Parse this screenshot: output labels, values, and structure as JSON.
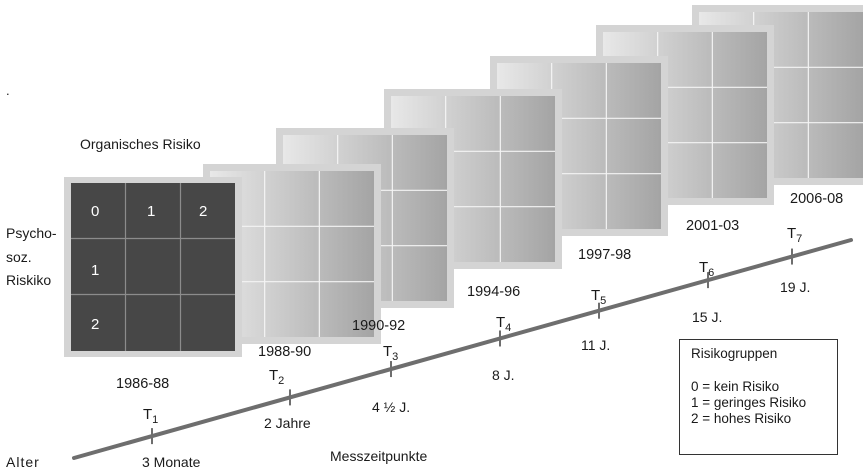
{
  "organic_risk_label": "Organisches Risiko",
  "psychosocial_risk_label": [
    "Psycho-",
    "soz.",
    "Riskiko"
  ],
  "axis_label": "Alter",
  "measurement_label": "Messzeitpunkte",
  "dot": ".",
  "grid": {
    "column_numbers": [
      "0",
      "1",
      "2"
    ],
    "row_numbers": [
      "1",
      "2"
    ]
  },
  "periods": [
    "1986-88",
    "1988-90",
    "1990-92",
    "1994-96",
    "1997-98",
    "2001-03",
    "2006-08"
  ],
  "timepoints": [
    {
      "t": "T",
      "sub": "1",
      "age": "3 Monate"
    },
    {
      "t": "T",
      "sub": "2",
      "age": "2 Jahre"
    },
    {
      "t": "T",
      "sub": "3",
      "age": "4 ½ J."
    },
    {
      "t": "T",
      "sub": "4",
      "age": "8 J."
    },
    {
      "t": "T",
      "sub": "5",
      "age": "11 J."
    },
    {
      "t": "T",
      "sub": "6",
      "age": "15 J."
    },
    {
      "t": "T",
      "sub": "7",
      "age": "19 J."
    }
  ],
  "legend": {
    "title": "Risikogruppen",
    "items": [
      "0 = kein Risiko",
      "1 = geringes Risiko",
      "2 = hohes Risiko"
    ]
  },
  "colors": {
    "front_panel": "#474747",
    "panel_light": "#e6e6e6",
    "panel_dark": "#a6a6a6",
    "frame": "#d4d4d4",
    "axis_line": "#6e6e6e"
  }
}
